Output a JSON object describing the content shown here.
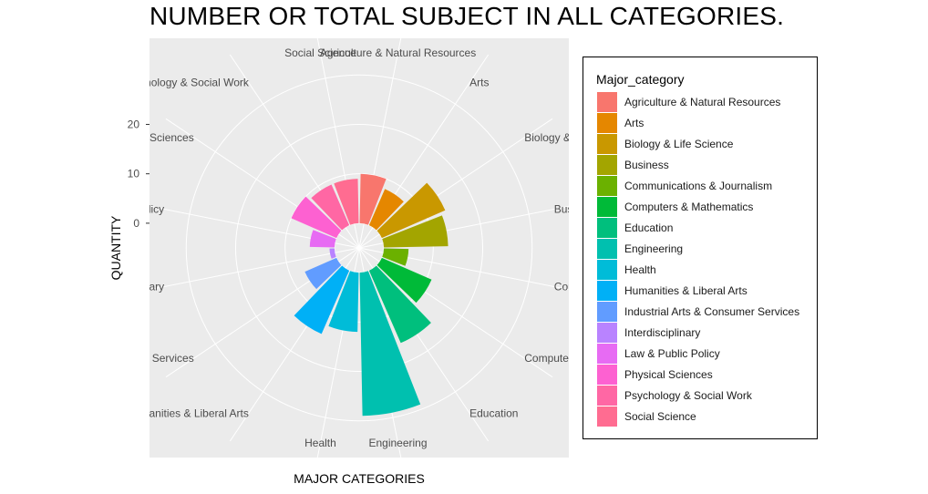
{
  "chart_data": {
    "type": "bar",
    "subtype": "polar (coord_polar bar / rose chart)",
    "title": "NUMBER OR TOTAL SUBJECT IN ALL CATEGORIES.",
    "xlabel": "MAJOR CATEGORIES",
    "ylabel": "QUANTITY",
    "y_ticks": [
      "0",
      "10",
      "20"
    ],
    "ylim": [
      -5,
      33
    ],
    "grid": true,
    "panel_background": "#ebebeb",
    "legend_title": "Major_category",
    "legend_position": "right",
    "categories": [
      "Agriculture & Natural Resources",
      "Arts",
      "Biology & Life Science",
      "Business",
      "Communications & Journalism",
      "Computers & Mathematics",
      "Education",
      "Engineering",
      "Health",
      "Humanities & Liberal Arts",
      "Industrial Arts & Consumer Services",
      "Interdisciplinary",
      "Law & Public Policy",
      "Physical Sciences",
      "Psychology & Social Work",
      "Social Science"
    ],
    "values": [
      10,
      8,
      14,
      13,
      5,
      11,
      16,
      29,
      12,
      14,
      7,
      1,
      5,
      10,
      9,
      9
    ],
    "colors": [
      "#F8766D",
      "#E58700",
      "#C99800",
      "#A3A500",
      "#6BB100",
      "#00BA38",
      "#00BF7D",
      "#00C0AF",
      "#00BCD8",
      "#00B0F6",
      "#619CFF",
      "#B983FF",
      "#E76BF3",
      "#FD61D1",
      "#FF67A4",
      "#FF6C91"
    ]
  }
}
